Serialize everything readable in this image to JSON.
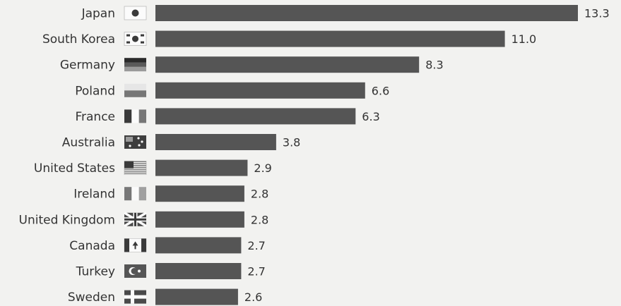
{
  "chart_data": {
    "type": "bar",
    "orientation": "horizontal",
    "categories": [
      "Japan",
      "South Korea",
      "Germany",
      "Poland",
      "France",
      "Australia",
      "United States",
      "Ireland",
      "United Kingdom",
      "Canada",
      "Turkey",
      "Sweden"
    ],
    "values": [
      13.3,
      11.0,
      8.3,
      6.6,
      6.3,
      3.8,
      2.9,
      2.8,
      2.8,
      2.7,
      2.7,
      2.6
    ],
    "value_labels": [
      "13.3",
      "11.0",
      "8.3",
      "6.6",
      "6.3",
      "3.8",
      "2.9",
      "2.8",
      "2.8",
      "2.7",
      "2.7",
      "2.6"
    ],
    "flag_icons": [
      "japan-flag-icon",
      "south-korea-flag-icon",
      "germany-flag-icon",
      "poland-flag-icon",
      "france-flag-icon",
      "australia-flag-icon",
      "united-states-flag-icon",
      "ireland-flag-icon",
      "united-kingdom-flag-icon",
      "canada-flag-icon",
      "turkey-flag-icon",
      "sweden-flag-icon"
    ],
    "bar_color": "#555555",
    "xlim": [
      0,
      13.3
    ],
    "grid": false,
    "title": "",
    "xlabel": "",
    "ylabel": ""
  }
}
